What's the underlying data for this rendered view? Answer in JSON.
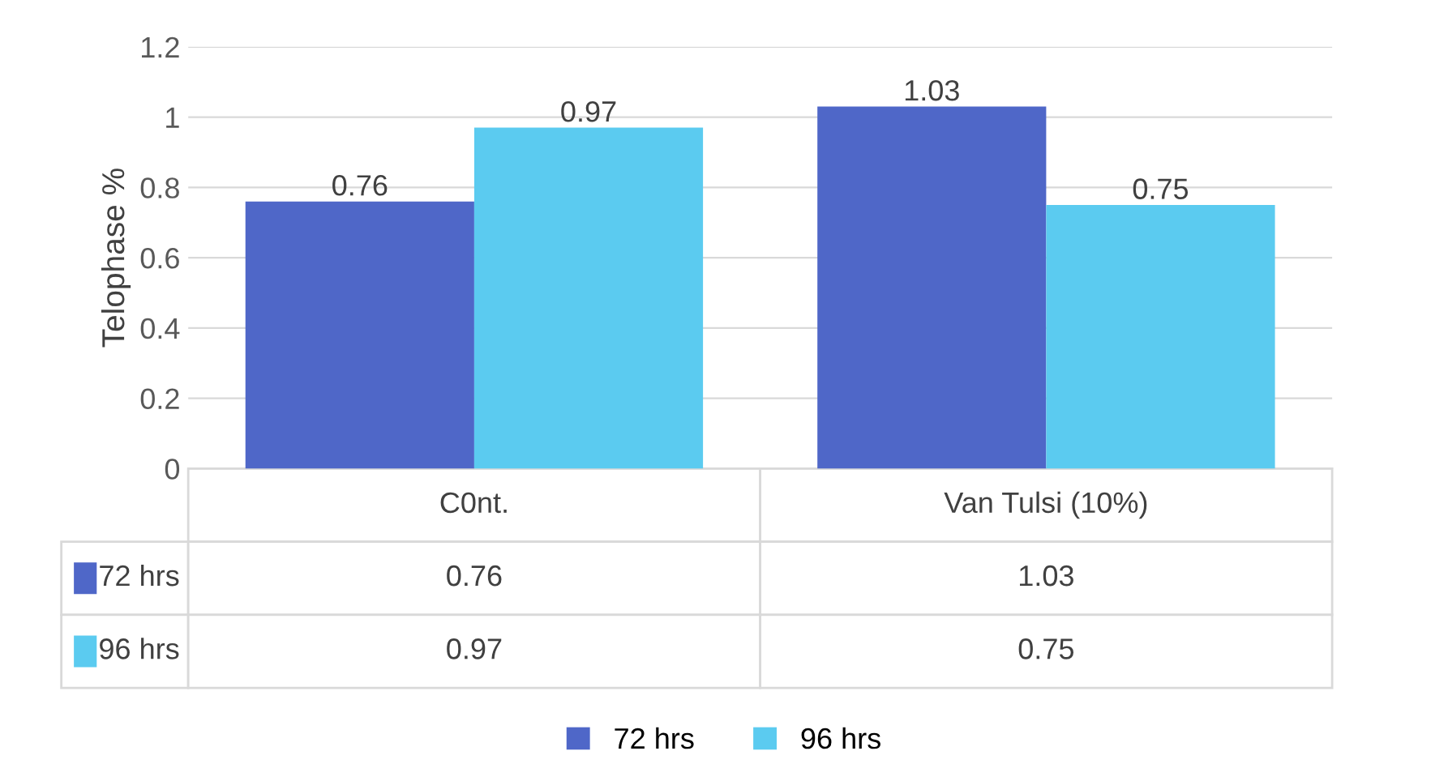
{
  "chart_data": {
    "type": "bar",
    "ylabel": "Telophase %",
    "categories": [
      "C0nt.",
      "Van Tulsi (10%)"
    ],
    "series": [
      {
        "name": "72 hrs",
        "color": "#4f67c8",
        "values": [
          0.76,
          1.03
        ],
        "value_labels": [
          "0.76",
          "1.03"
        ]
      },
      {
        "name": "96 hrs",
        "color": "#5bcbf0",
        "values": [
          0.97,
          0.75
        ],
        "value_labels": [
          "0.97",
          "0.75"
        ]
      }
    ],
    "ylim": [
      0,
      1.2
    ],
    "yticks": [
      0,
      0.2,
      0.4,
      0.6,
      0.8,
      1,
      1.2
    ],
    "grid": "y",
    "legend": "bottom"
  }
}
